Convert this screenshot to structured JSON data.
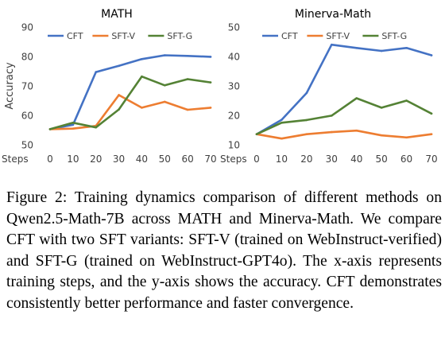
{
  "chart_data": [
    {
      "type": "line",
      "title": "MATH",
      "xlabel": "Steps",
      "ylabel": "Accuracy",
      "x": [
        0,
        10,
        20,
        30,
        40,
        50,
        60,
        70
      ],
      "x_tick_labels": [
        "0",
        "10",
        "20",
        "30",
        "40",
        "50",
        "60",
        "70"
      ],
      "ylim": [
        50,
        90
      ],
      "y_ticks": [
        50,
        60,
        70,
        80,
        90
      ],
      "y_tick_labels": [
        "50",
        "60",
        "70",
        "80",
        "90"
      ],
      "grid": false,
      "legend_position": "top",
      "series": [
        {
          "name": "CFT",
          "color": "#4472C4",
          "values": [
            55.3,
            56.8,
            74.7,
            76.8,
            79.1,
            80.4,
            80.2,
            79.9
          ]
        },
        {
          "name": "SFT-V",
          "color": "#ED7D31",
          "values": [
            55.3,
            55.5,
            56.4,
            66.9,
            62.6,
            64.6,
            61.9,
            62.6
          ]
        },
        {
          "name": "SFT-G",
          "color": "#548235",
          "values": [
            55.3,
            57.5,
            55.9,
            62.0,
            73.2,
            70.2,
            72.3,
            71.2
          ]
        }
      ]
    },
    {
      "type": "line",
      "title": "Minerva-Math",
      "xlabel": "Steps",
      "ylabel": "",
      "x": [
        0,
        10,
        20,
        30,
        40,
        50,
        60,
        70
      ],
      "x_tick_labels": [
        "0",
        "10",
        "20",
        "30",
        "40",
        "50",
        "60",
        "70"
      ],
      "ylim": [
        10,
        50
      ],
      "y_ticks": [
        10,
        20,
        30,
        40,
        50
      ],
      "y_tick_labels": [
        "10",
        "20",
        "30",
        "40",
        "50"
      ],
      "grid": false,
      "legend_position": "top",
      "series": [
        {
          "name": "CFT",
          "color": "#4472C4",
          "values": [
            13.6,
            18.5,
            27.6,
            44.0,
            42.9,
            41.9,
            42.9,
            40.4
          ]
        },
        {
          "name": "SFT-V",
          "color": "#ED7D31",
          "values": [
            13.6,
            12.1,
            13.6,
            14.3,
            14.8,
            13.2,
            12.5,
            13.6
          ]
        },
        {
          "name": "SFT-G",
          "color": "#548235",
          "values": [
            13.6,
            17.5,
            18.4,
            19.9,
            25.8,
            22.6,
            25.0,
            20.6
          ]
        }
      ]
    }
  ],
  "caption": "Figure 2: Training dynamics comparison of different methods on Qwen2.5-Math-7B across MATH and Minerva-Math. We compare CFT with two SFT variants: SFT-V (trained on WebInstruct-verified) and SFT-G (trained on WebInstruct-GPT4o). The x-axis represents training steps, and the y-axis shows the accuracy. CFT demonstrates consistently better performance and faster convergence."
}
